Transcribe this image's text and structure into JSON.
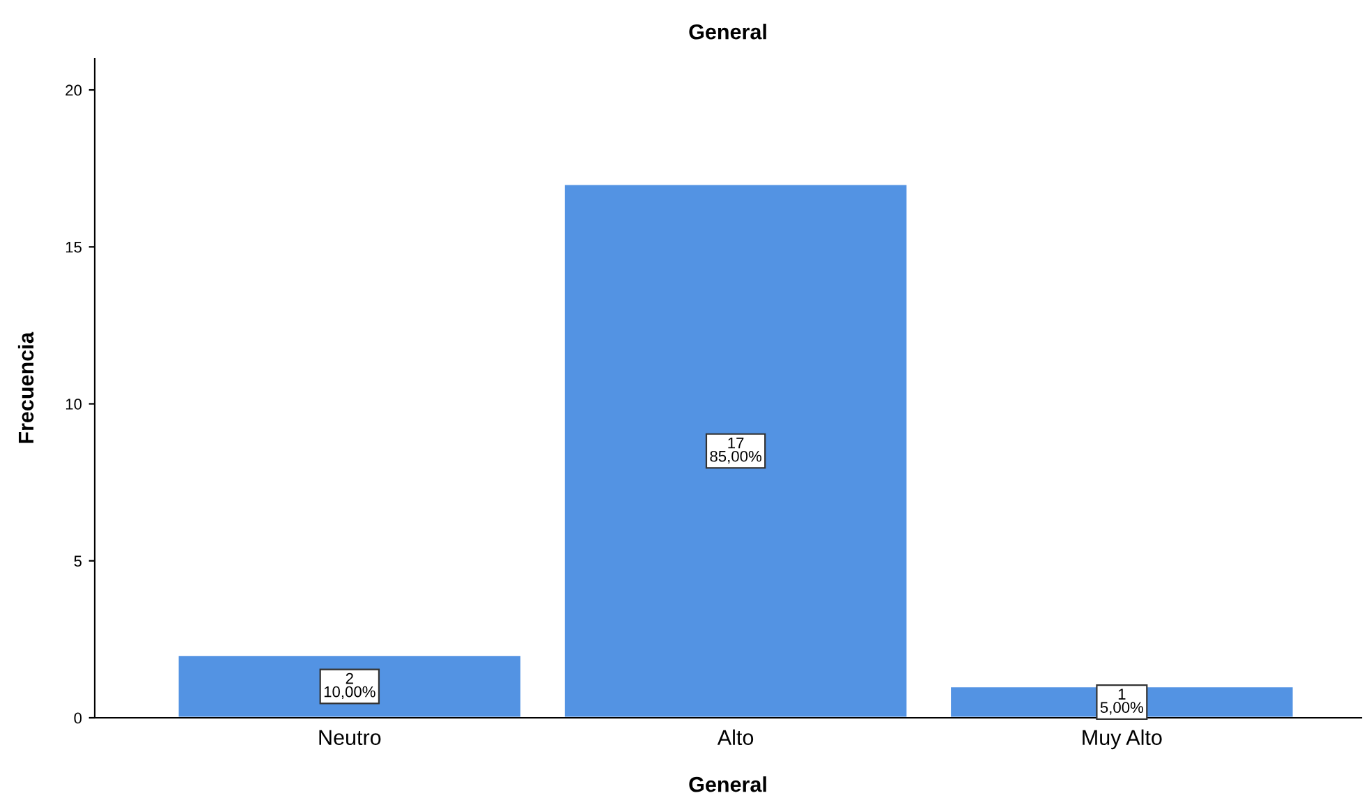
{
  "chart_data": {
    "type": "bar",
    "title": "General",
    "xlabel": "General",
    "ylabel": "Frecuencia",
    "categories": [
      "Neutro",
      "Alto",
      "Muy Alto"
    ],
    "values": [
      2,
      17,
      1
    ],
    "value_labels": [
      "2\n10,00%",
      "17\n85,00%",
      "1\n5,00%"
    ],
    "color": "#5393e3",
    "ylim": [
      0,
      21
    ],
    "yticks": [
      0,
      5,
      10,
      15,
      20
    ],
    "grid": false,
    "legend": false
  }
}
